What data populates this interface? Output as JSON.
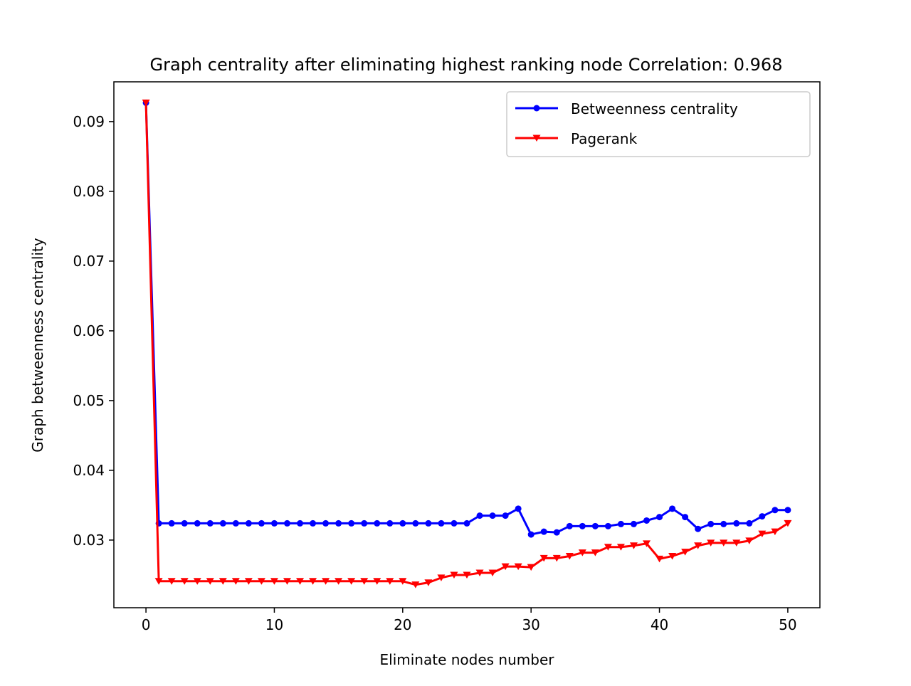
{
  "chart_data": {
    "type": "line",
    "title": "Graph centrality after eliminating highest ranking node Correlation: 0.968",
    "xlabel": "Eliminate nodes number",
    "ylabel": "Graph betweenness centrality",
    "xlim": [
      -2.5,
      52.5
    ],
    "ylim": [
      0.0203,
      0.0957
    ],
    "x_ticks": [
      0,
      10,
      20,
      30,
      40,
      50
    ],
    "x_tick_labels": [
      "0",
      "10",
      "20",
      "30",
      "40",
      "50"
    ],
    "y_ticks": [
      0.03,
      0.04,
      0.05,
      0.06,
      0.07,
      0.08,
      0.09
    ],
    "y_tick_labels": [
      "0.03",
      "0.04",
      "0.05",
      "0.06",
      "0.07",
      "0.08",
      "0.09"
    ],
    "grid": false,
    "legend_position": "top-right",
    "x": [
      0,
      1,
      2,
      3,
      4,
      5,
      6,
      7,
      8,
      9,
      10,
      11,
      12,
      13,
      14,
      15,
      16,
      17,
      18,
      19,
      20,
      21,
      22,
      23,
      24,
      25,
      26,
      27,
      28,
      29,
      30,
      31,
      32,
      33,
      34,
      35,
      36,
      37,
      38,
      39,
      40,
      41,
      42,
      43,
      44,
      45,
      46,
      47,
      48,
      49,
      50
    ],
    "series": [
      {
        "name": "Betweenness centrality",
        "color": "#0000ff",
        "marker": "circle",
        "values": [
          0.0927,
          0.0324,
          0.0324,
          0.0324,
          0.0324,
          0.0324,
          0.0324,
          0.0324,
          0.0324,
          0.0324,
          0.0324,
          0.0324,
          0.0324,
          0.0324,
          0.0324,
          0.0324,
          0.0324,
          0.0324,
          0.0324,
          0.0324,
          0.0324,
          0.0324,
          0.0324,
          0.0324,
          0.0324,
          0.0324,
          0.0335,
          0.0335,
          0.0335,
          0.0345,
          0.0308,
          0.0312,
          0.0311,
          0.032,
          0.032,
          0.032,
          0.032,
          0.0323,
          0.0323,
          0.0328,
          0.0333,
          0.0345,
          0.0333,
          0.0316,
          0.0323,
          0.0323,
          0.0324,
          0.0324,
          0.0334,
          0.0343,
          0.0343
        ]
      },
      {
        "name": "Pagerank",
        "color": "#ff0000",
        "marker": "triangle-down",
        "values": [
          0.0927,
          0.0241,
          0.0241,
          0.0241,
          0.0241,
          0.0241,
          0.0241,
          0.0241,
          0.0241,
          0.0241,
          0.0241,
          0.0241,
          0.0241,
          0.0241,
          0.0241,
          0.0241,
          0.0241,
          0.0241,
          0.0241,
          0.0241,
          0.0241,
          0.0236,
          0.0239,
          0.0246,
          0.025,
          0.025,
          0.0253,
          0.0253,
          0.0262,
          0.0262,
          0.0261,
          0.0274,
          0.0274,
          0.0277,
          0.0282,
          0.0282,
          0.029,
          0.029,
          0.0292,
          0.0295,
          0.0273,
          0.0277,
          0.0283,
          0.0292,
          0.0296,
          0.0296,
          0.0296,
          0.0299,
          0.0309,
          0.0312,
          0.0324
        ]
      }
    ]
  }
}
